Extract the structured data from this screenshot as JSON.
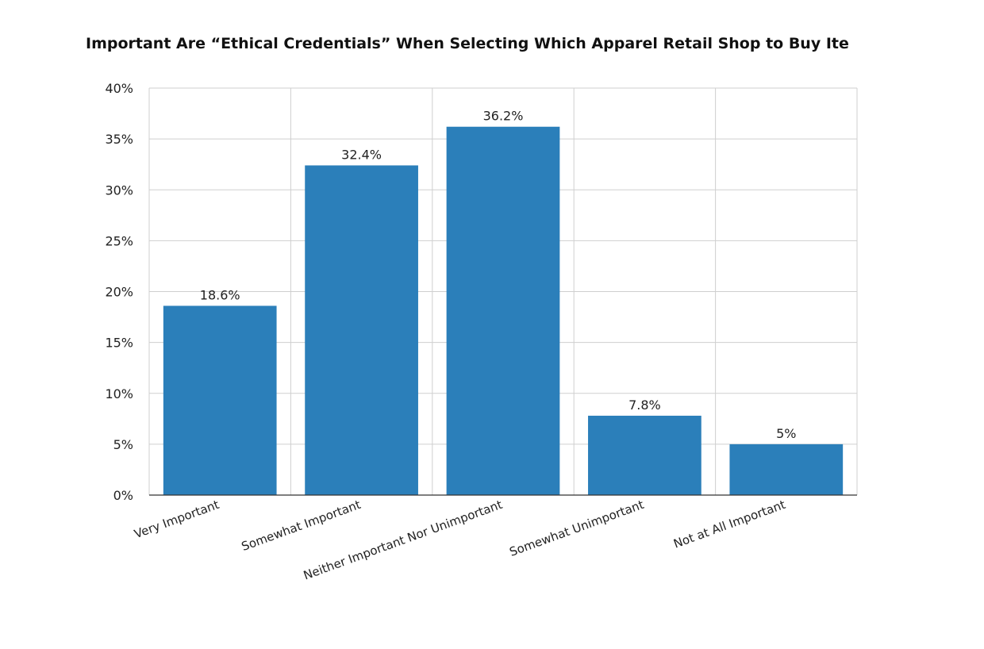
{
  "chart_data": {
    "type": "bar",
    "title": "Important Are “Ethical Credentials” When Selecting Which Apparel Retail Shop to Buy Ite",
    "xlabel": "",
    "ylabel": "",
    "categories": [
      "Very Important",
      "Somewhat Important",
      "Neither Important Nor Unimportant",
      "Somewhat Unimportant",
      "Not at All Important"
    ],
    "values": [
      18.6,
      32.4,
      36.2,
      7.8,
      5
    ],
    "value_labels": [
      "18.6%",
      "32.4%",
      "36.2%",
      "7.8%",
      "5%"
    ],
    "ylim": [
      0,
      40
    ],
    "yticks": [
      0,
      5,
      10,
      15,
      20,
      25,
      30,
      35,
      40
    ],
    "ytick_labels": [
      "0%",
      "5%",
      "10%",
      "15%",
      "20%",
      "25%",
      "30%",
      "35%",
      "40%"
    ],
    "bar_color": "#2b7fba",
    "grid": true,
    "legend": "none"
  }
}
